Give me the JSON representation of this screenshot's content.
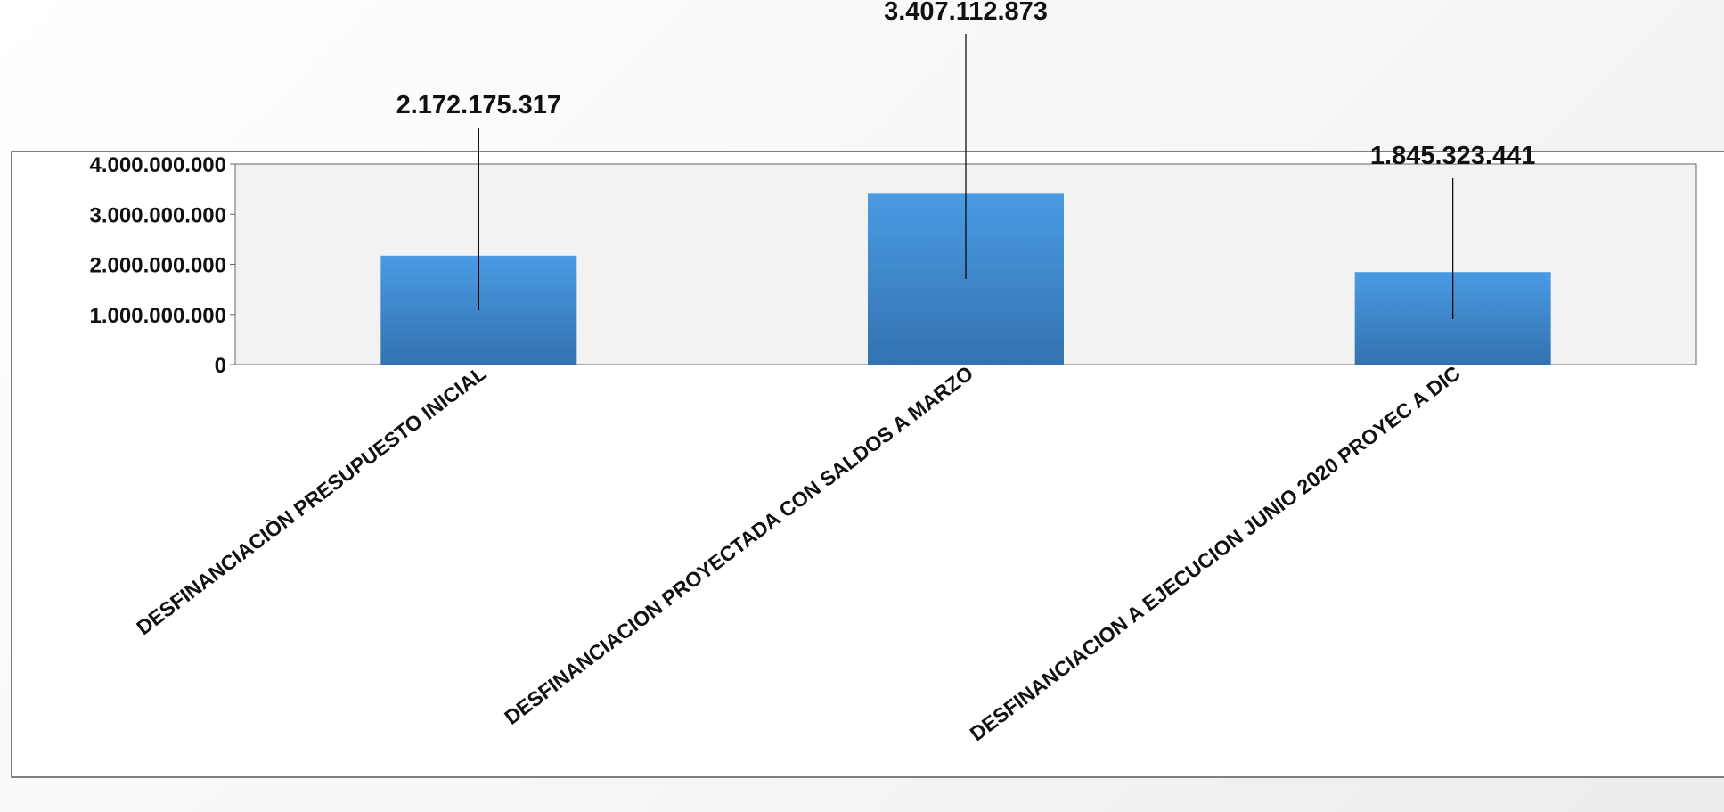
{
  "chart_data": {
    "type": "bar",
    "categories": [
      "DESFINANCIACIÒN PRESUPUESTO INICIAL",
      "DESFINANCIACION PROYECTADA CON SALDOS A MARZO",
      "DESFINANCIACION A EJECUCION JUNIO 2020 PROYEC A DIC"
    ],
    "values": [
      2172175317,
      3407112873,
      1845323441
    ],
    "data_labels": [
      "2.172.175.317",
      "3.407.112.873",
      "1.845.323.441"
    ],
    "y_ticks": [
      0,
      1000000000,
      2000000000,
      3000000000,
      4000000000
    ],
    "y_tick_labels": [
      "0",
      "1.000.000.000",
      "2.000.000.000",
      "3.000.000.000",
      "4.000.000.000"
    ],
    "ylim": [
      0,
      4000000000
    ],
    "title": "",
    "xlabel": "",
    "ylabel": "",
    "grid": false,
    "legend": "none",
    "colors": {
      "bar_top": "#4a9be3",
      "bar_bottom": "#3272b0",
      "plot_bg": "#f2f2f2",
      "frame": "#555555",
      "leader_line": "#000000"
    }
  }
}
